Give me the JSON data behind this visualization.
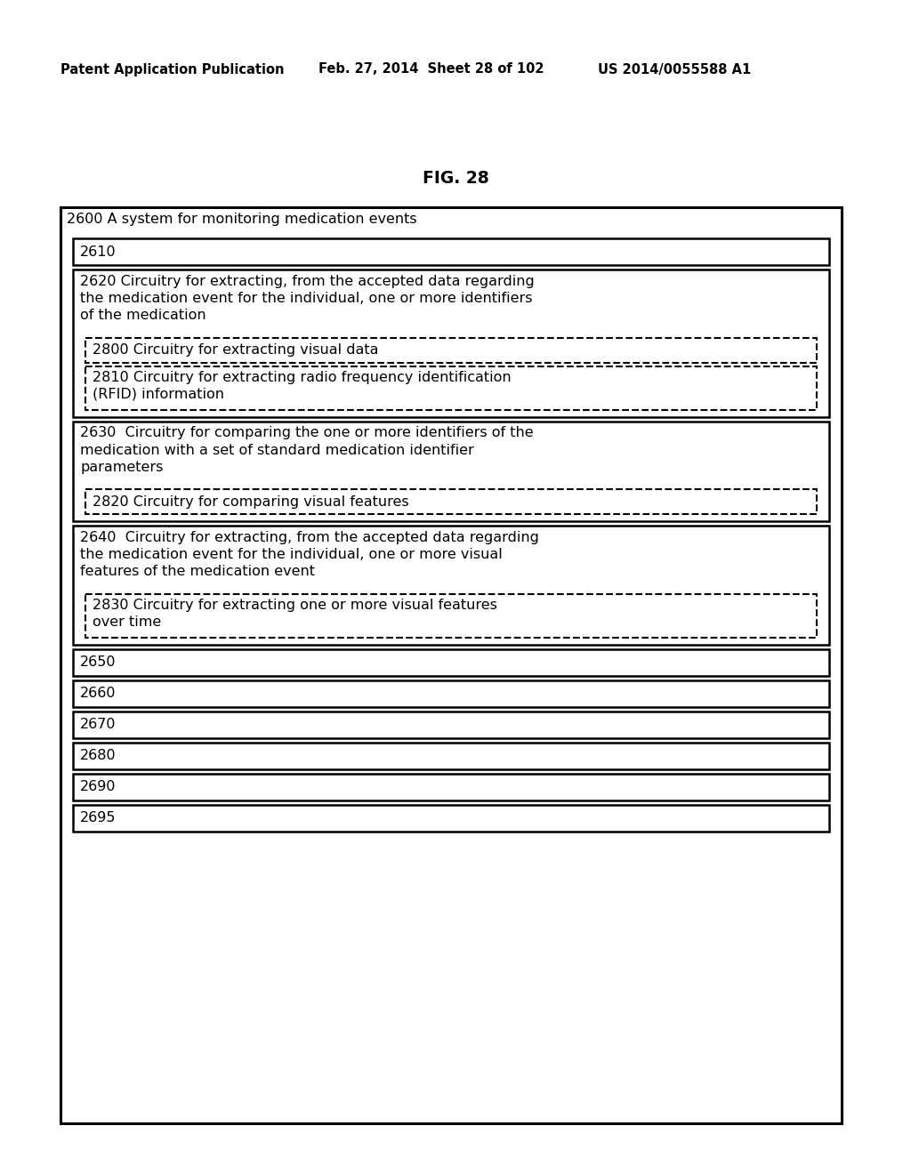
{
  "header_left": "Patent Application Publication",
  "header_mid": "Feb. 27, 2014  Sheet 28 of 102",
  "header_right": "US 2014/0055588 A1",
  "fig_label": "FIG. 28",
  "bg_color": "#ffffff",
  "text_color": "#000000",
  "outer_box_label": "2600 A system for monitoring medication events",
  "box_2610_label": "2610",
  "box_2620_text": "2620 Circuitry for extracting, from the accepted data regarding\nthe medication event for the individual, one or more identifiers\nof the medication",
  "box_2800_text": "2800 Circuitry for extracting visual data",
  "box_2810_text": "2810 Circuitry for extracting radio frequency identification\n(RFID) information",
  "box_2630_text": "2630  Circuitry for comparing the one or more identifiers of the\nmedication with a set of standard medication identifier\nparameters",
  "box_2820_text": "2820 Circuitry for comparing visual features",
  "box_2640_text": "2640  Circuitry for extracting, from the accepted data regarding\nthe medication event for the individual, one or more visual\nfeatures of the medication event",
  "box_2830_text": "2830 Circuitry for extracting one or more visual features\nover time",
  "simple_boxes": [
    "2650",
    "2660",
    "2670",
    "2680",
    "2690",
    "2695"
  ]
}
